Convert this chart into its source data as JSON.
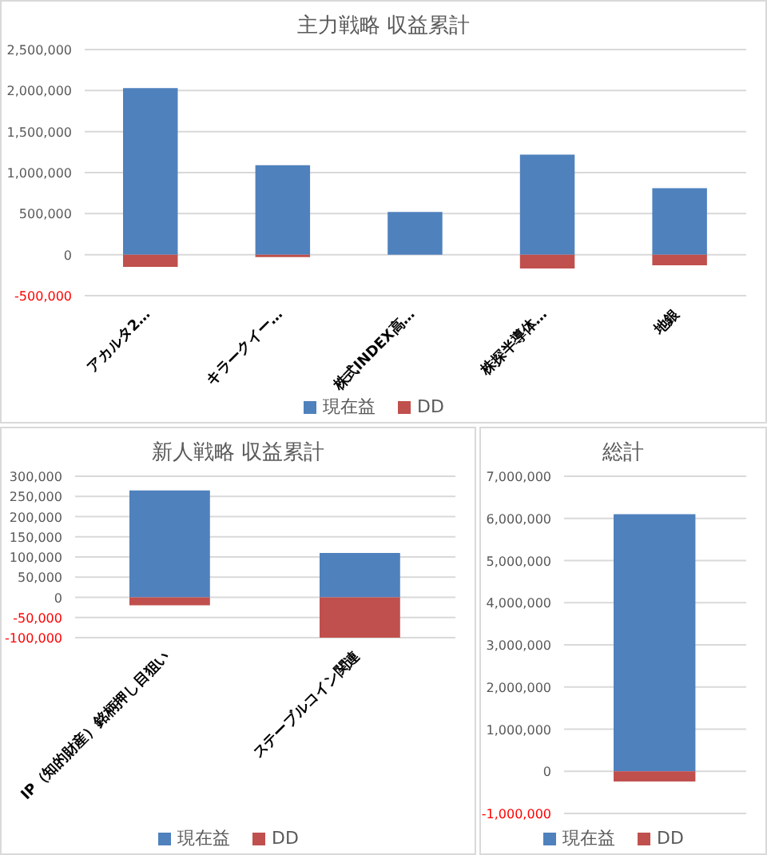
{
  "chart_data": [
    {
      "type": "bar",
      "title": "主力戦略 収益累計",
      "categories": [
        "アカルタ2…",
        "キラークイー…",
        "株式INDEX高…",
        "株探半導体…",
        "地銀"
      ],
      "stacked": true,
      "series": [
        {
          "name": "現在益",
          "color": "#4f81bd",
          "values": [
            2030000,
            1090000,
            520000,
            1220000,
            810000
          ]
        },
        {
          "name": "DD",
          "color": "#c0504d",
          "values": [
            -150000,
            -30000,
            0,
            -170000,
            -130000
          ]
        }
      ],
      "ylim": [
        -500000,
        2500000
      ],
      "yticks": [
        {
          "value": -500000,
          "label": "-500,000"
        },
        {
          "value": 0,
          "label": "0"
        },
        {
          "value": 500000,
          "label": "500,000"
        },
        {
          "value": 1000000,
          "label": "1,000,000"
        },
        {
          "value": 1500000,
          "label": "1,500,000"
        },
        {
          "value": 2000000,
          "label": "2,000,000"
        },
        {
          "value": 2500000,
          "label": "2,500,000"
        }
      ],
      "grid": "y",
      "legend": "bottom"
    },
    {
      "type": "bar",
      "title": "新人戦略 収益累計",
      "categories": [
        "IP（知的財産）銘柄押し目狙い",
        "ステーブルコイン関連"
      ],
      "stacked": true,
      "series": [
        {
          "name": "現在益",
          "color": "#4f81bd",
          "values": [
            265000,
            110000
          ]
        },
        {
          "name": "DD",
          "color": "#c0504d",
          "values": [
            -20000,
            -100000
          ]
        }
      ],
      "ylim": [
        -100000,
        300000
      ],
      "yticks": [
        {
          "value": -100000,
          "label": "-100,000"
        },
        {
          "value": -50000,
          "label": "-50,000"
        },
        {
          "value": 0,
          "label": "0"
        },
        {
          "value": 50000,
          "label": "50,000"
        },
        {
          "value": 100000,
          "label": "100,000"
        },
        {
          "value": 150000,
          "label": "150,000"
        },
        {
          "value": 200000,
          "label": "200,000"
        },
        {
          "value": 250000,
          "label": "250,000"
        },
        {
          "value": 300000,
          "label": "300,000"
        }
      ],
      "grid": "y",
      "legend": "bottom"
    },
    {
      "type": "bar",
      "title": "総計",
      "categories": [
        null
      ],
      "stacked": true,
      "series": [
        {
          "name": "現在益",
          "color": "#4f81bd",
          "values": [
            6100000
          ]
        },
        {
          "name": "DD",
          "color": "#c0504d",
          "values": [
            -240000
          ]
        }
      ],
      "ylim": [
        -1000000,
        7000000
      ],
      "yticks": [
        {
          "value": -1000000,
          "label": "-1,000,000"
        },
        {
          "value": 0,
          "label": "0"
        },
        {
          "value": 1000000,
          "label": "1,000,000"
        },
        {
          "value": 2000000,
          "label": "2,000,000"
        },
        {
          "value": 3000000,
          "label": "3,000,000"
        },
        {
          "value": 4000000,
          "label": "4,000,000"
        },
        {
          "value": 5000000,
          "label": "5,000,000"
        },
        {
          "value": 6000000,
          "label": "6,000,000"
        },
        {
          "value": 7000000,
          "label": "7,000,000"
        }
      ],
      "grid": "y",
      "legend": "bottom"
    }
  ]
}
